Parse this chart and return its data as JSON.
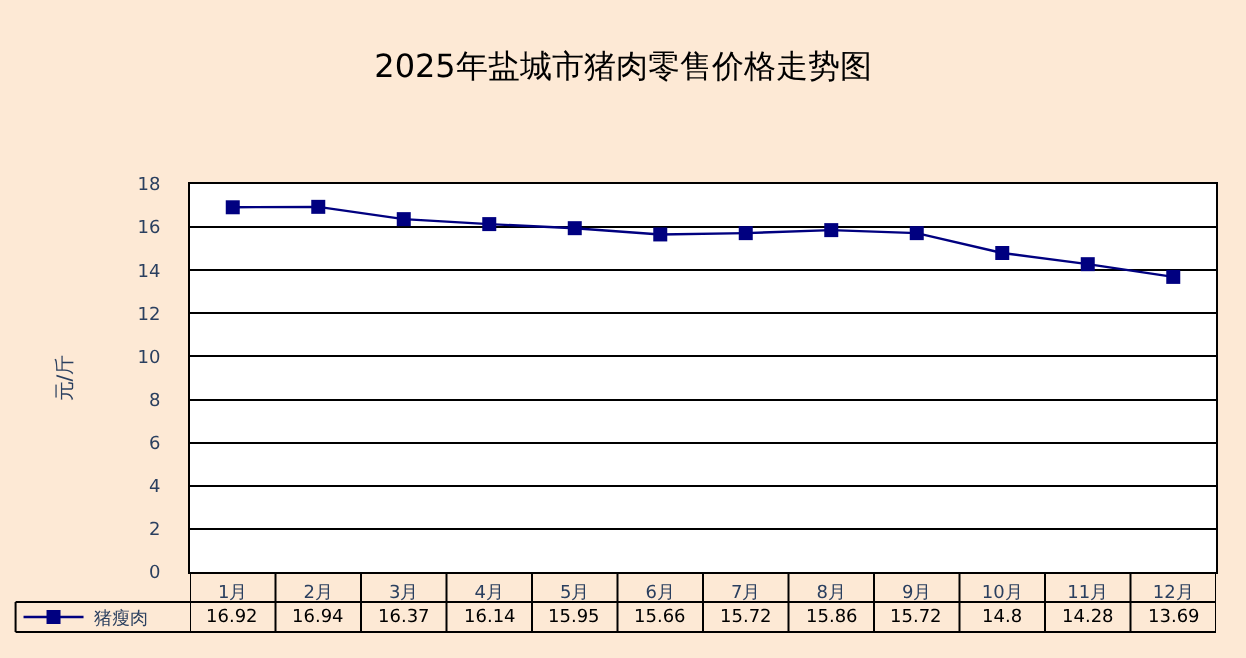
{
  "chart_data": {
    "type": "line",
    "title": "2025年盐城市猪肉零售价格走势图",
    "ylabel": "元/斤",
    "categories": [
      "1月",
      "2月",
      "3月",
      "4月",
      "5月",
      "6月",
      "7月",
      "8月",
      "9月",
      "10月",
      "11月",
      "12月"
    ],
    "series": [
      {
        "name": "猪瘦肉",
        "color": "#000080",
        "values": [
          16.92,
          16.94,
          16.37,
          16.14,
          15.95,
          15.66,
          15.72,
          15.86,
          15.72,
          14.8,
          14.28,
          13.69
        ]
      }
    ],
    "ylim": [
      0,
      18
    ],
    "yticks": [
      0,
      2,
      4,
      6,
      8,
      10,
      12,
      14,
      16,
      18
    ],
    "grid": "y",
    "legend": "bottom left",
    "marker": "square",
    "line_style": "solid",
    "data_labels": true
  }
}
